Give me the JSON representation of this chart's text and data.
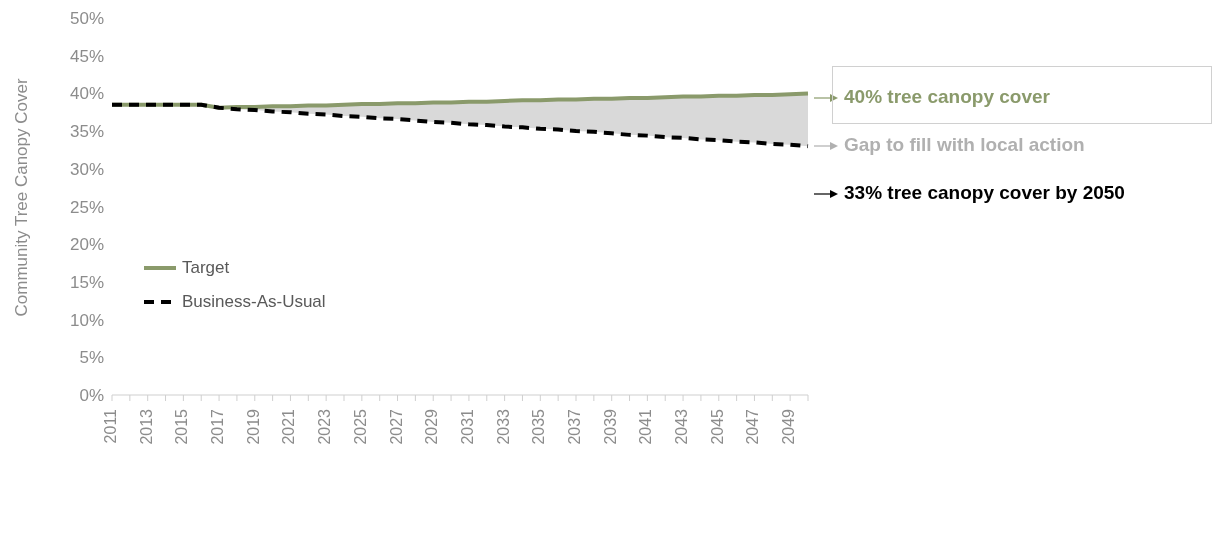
{
  "chart_data": {
    "type": "line",
    "ylabel": "Community Tree Canopy Cover",
    "categories": [
      "2011",
      null,
      "2013",
      null,
      "2015",
      null,
      "2017",
      null,
      "2019",
      null,
      "2021",
      null,
      "2023",
      null,
      "2025",
      null,
      "2027",
      null,
      "2029",
      null,
      "2031",
      null,
      "2033",
      null,
      "2035",
      null,
      "2037",
      null,
      "2039",
      null,
      "2041",
      null,
      "2043",
      null,
      "2045",
      null,
      "2047",
      null,
      "2049",
      null
    ],
    "series": [
      {
        "name": "Target",
        "color": "#8a9a6b",
        "line_style": "solid",
        "values": [
          38.5,
          38.5,
          38.5,
          38.5,
          38.5,
          38.5,
          38.1,
          38.2,
          38.2,
          38.3,
          38.3,
          38.4,
          38.4,
          38.5,
          38.6,
          38.6,
          38.7,
          38.7,
          38.8,
          38.8,
          38.9,
          38.9,
          39.0,
          39.1,
          39.1,
          39.2,
          39.2,
          39.3,
          39.3,
          39.4,
          39.4,
          39.5,
          39.6,
          39.6,
          39.7,
          39.7,
          39.8,
          39.8,
          39.9,
          40.0
        ],
        "lower": [
          null,
          null,
          null,
          null,
          null,
          null,
          38.1,
          37.9,
          37.8,
          37.6,
          37.5,
          37.3,
          37.2,
          37.0,
          36.9,
          36.7,
          36.6,
          36.4,
          36.2,
          36.1,
          35.9,
          35.8,
          35.6,
          35.5,
          35.3,
          35.2,
          35.0,
          34.9,
          34.7,
          34.5,
          34.4,
          34.2,
          34.1,
          33.9,
          33.8,
          33.6,
          33.5,
          33.3,
          33.2,
          33.0
        ],
        "upper": [
          null,
          null,
          null,
          null,
          null,
          null,
          38.1,
          38.2,
          38.2,
          38.3,
          38.3,
          38.4,
          38.4,
          38.5,
          38.6,
          38.6,
          38.7,
          38.7,
          38.8,
          38.8,
          38.9,
          38.9,
          39.0,
          39.1,
          39.1,
          39.2,
          39.2,
          39.3,
          39.3,
          39.4,
          39.4,
          39.5,
          39.6,
          39.6,
          39.7,
          39.7,
          39.8,
          39.8,
          39.9,
          40.0
        ]
      },
      {
        "name": "Business-As-Usual",
        "color": "#000000",
        "line_style": "dashed",
        "values": [
          38.5,
          38.5,
          38.5,
          38.5,
          38.5,
          38.5,
          38.1,
          37.9,
          37.8,
          37.6,
          37.5,
          37.3,
          37.2,
          37.0,
          36.9,
          36.7,
          36.6,
          36.4,
          36.2,
          36.1,
          35.9,
          35.8,
          35.6,
          35.5,
          35.3,
          35.2,
          35.0,
          34.9,
          34.7,
          34.5,
          34.4,
          34.2,
          34.1,
          33.9,
          33.8,
          33.6,
          33.5,
          33.3,
          33.2,
          33.0
        ]
      }
    ],
    "ylim": [
      0,
      50
    ],
    "yticks": [
      {
        "value": 0,
        "label": "0%"
      },
      {
        "value": 5,
        "label": "5%"
      },
      {
        "value": 10,
        "label": "10%"
      },
      {
        "value": 15,
        "label": "15%"
      },
      {
        "value": 20,
        "label": "20%"
      },
      {
        "value": 25,
        "label": "25%"
      },
      {
        "value": 30,
        "label": "30%"
      },
      {
        "value": 35,
        "label": "35%"
      },
      {
        "value": 40,
        "label": "40%"
      },
      {
        "value": 45,
        "label": "45%"
      },
      {
        "value": 50,
        "label": "50%"
      }
    ],
    "annotations": [
      "40% tree canopy cover",
      "Gap to fill with local action",
      "33% tree canopy cover by 2050"
    ],
    "grid": false,
    "legend": "left",
    "marker": "none"
  }
}
